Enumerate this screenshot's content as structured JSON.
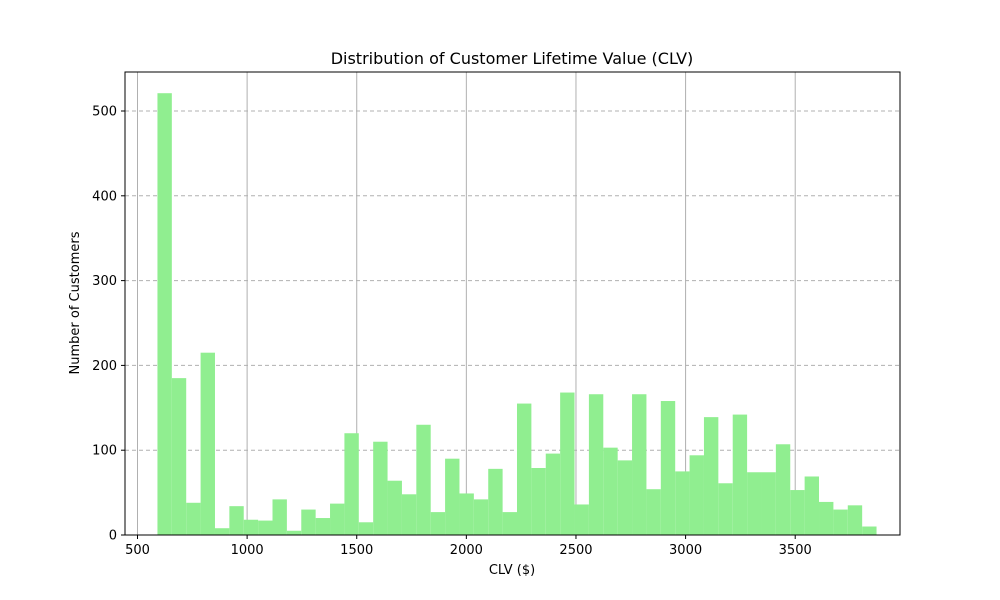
{
  "chart_data": {
    "type": "bar",
    "title": "Distribution of Customer Lifetime Value (CLV)",
    "xlabel": "CLV ($)",
    "ylabel": "Number of Customers",
    "xlim": [
      443,
      3978
    ],
    "ylim": [
      0,
      546
    ],
    "bin_start": 591,
    "bin_width": 65.6,
    "counts": [
      521,
      185,
      38,
      215,
      8,
      34,
      18,
      17,
      42,
      5,
      30,
      20,
      37,
      120,
      15,
      110,
      64,
      48,
      130,
      27,
      90,
      49,
      42,
      78,
      27,
      155,
      79,
      96,
      168,
      36,
      166,
      103,
      88,
      166,
      54,
      158,
      75,
      94,
      139,
      61,
      142,
      74,
      74,
      107,
      53,
      69,
      39,
      30,
      35,
      10
    ],
    "xticks": [
      500,
      1000,
      1500,
      2000,
      2500,
      3000,
      3500
    ],
    "yticks": [
      0,
      100,
      200,
      300,
      400,
      500
    ],
    "grid": true,
    "bar_color": "#90ee90",
    "grid_color": "#b0b0b0"
  }
}
